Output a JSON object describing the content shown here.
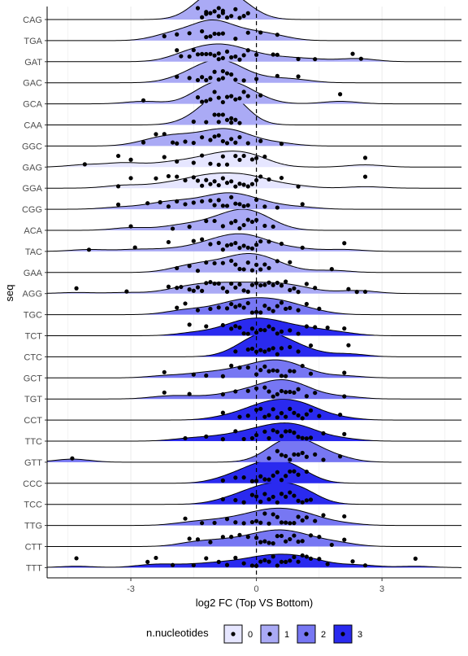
{
  "chart_data": {
    "type": "ridgeline",
    "xlabel": "log2 FC (Top VS Bottom)",
    "ylabel": "seq",
    "xlim": [
      -5.0,
      4.9
    ],
    "x_ticks": [
      -3,
      0,
      3
    ],
    "x_tick_labels": [
      "-3",
      "0",
      "3"
    ],
    "reference_line_x": 0,
    "grid": true,
    "legend": {
      "title": "n.nucleotides",
      "position": "bottom",
      "entries": [
        {
          "label": "0",
          "color": "#e6e6ff"
        },
        {
          "label": "1",
          "color": "#aaaaf5"
        },
        {
          "label": "2",
          "color": "#7777f3"
        },
        {
          "label": "3",
          "color": "#2a2aef"
        }
      ]
    },
    "categories": [
      "CAG",
      "TGA",
      "GAT",
      "GAC",
      "GCA",
      "CAA",
      "GGC",
      "GAG",
      "GGA",
      "CGG",
      "ACA",
      "TAC",
      "GAA",
      "AGG",
      "TGC",
      "TCT",
      "CTC",
      "GCT",
      "TGT",
      "CCT",
      "TTC",
      "GTT",
      "CCC",
      "TCC",
      "TTG",
      "CTT",
      "TTT"
    ],
    "series": [
      {
        "seq": "CAG",
        "n": 1,
        "points": [
          -1.4,
          -1.3,
          -1.2,
          -1.2,
          -1.1,
          -1.0,
          -0.9,
          -0.8,
          -0.8,
          -0.7,
          -0.6,
          -0.5,
          -0.4,
          -0.3,
          -0.2,
          -0.9
        ]
      },
      {
        "seq": "TGA",
        "n": 1,
        "points": [
          -2.2,
          -1.9,
          -1.6,
          -1.3,
          -1.2,
          -1.1,
          -1.0,
          -0.9,
          -0.8,
          -0.5,
          -0.2,
          0.1,
          0.5
        ]
      },
      {
        "seq": "GAT",
        "n": 1,
        "points": [
          -1.9,
          -1.8,
          -1.6,
          -1.5,
          -1.4,
          -1.3,
          -1.2,
          -1.1,
          -1.0,
          -0.9,
          -0.9,
          -0.8,
          -0.7,
          -0.6,
          -0.5,
          -0.4,
          -0.3,
          -0.2,
          0.0,
          0.4,
          0.5,
          1.0,
          1.4,
          2.3,
          2.5
        ]
      },
      {
        "seq": "GAC",
        "n": 1,
        "points": [
          -1.9,
          -1.6,
          -1.4,
          -1.3,
          -1.2,
          -1.1,
          -1.0,
          -0.9,
          -0.8,
          -0.8,
          -0.7,
          -0.6,
          -0.5,
          -0.3,
          0.0,
          0.5,
          1.0
        ]
      },
      {
        "seq": "GCA",
        "n": 1,
        "points": [
          -2.7,
          -1.4,
          -1.3,
          -1.2,
          -1.1,
          -1.0,
          -0.9,
          -0.8,
          -0.7,
          -0.6,
          -0.5,
          -0.4,
          -0.3,
          -0.2,
          0.1,
          2.0
        ]
      },
      {
        "seq": "CAA",
        "n": 1,
        "points": [
          -1.5,
          -1.2,
          -1.0,
          -0.9,
          -0.8,
          -0.7,
          -0.6,
          -0.5,
          -0.4,
          -0.9,
          -0.6
        ]
      },
      {
        "seq": "GGC",
        "n": 1,
        "points": [
          -2.7,
          -2.4,
          -2.2,
          -2.0,
          -1.9,
          -1.7,
          -1.5,
          -1.3,
          -1.1,
          -1.0,
          -0.9,
          -0.8,
          -0.7,
          -0.6,
          -0.5,
          -0.4,
          -0.2,
          0.1,
          0.6
        ]
      },
      {
        "seq": "GAG",
        "n": 0,
        "points": [
          -4.1,
          -3.3,
          -3.0,
          -2.2,
          -1.9,
          -1.5,
          -1.3,
          -1.1,
          -0.9,
          -0.8,
          -0.7,
          -0.5,
          -0.4,
          -0.3,
          -0.1,
          0.0,
          0.2,
          2.6
        ]
      },
      {
        "seq": "GGA",
        "n": 0,
        "points": [
          -3.3,
          -3.0,
          -2.4,
          -2.1,
          -1.9,
          -1.7,
          -1.5,
          -1.4,
          -1.3,
          -1.2,
          -1.1,
          -1.0,
          -0.9,
          -0.8,
          -0.7,
          -0.6,
          -0.5,
          -0.4,
          -0.3,
          -0.2,
          -0.1,
          0.0,
          0.1,
          0.3,
          0.6,
          1.0,
          2.6
        ]
      },
      {
        "seq": "CGG",
        "n": 1,
        "points": [
          -3.3,
          -2.6,
          -2.3,
          -2.1,
          -1.9,
          -1.7,
          -1.5,
          -1.3,
          -1.1,
          -1.0,
          -0.9,
          -0.8,
          -0.7,
          -0.6,
          -0.5,
          -0.4,
          -0.3,
          -0.2,
          0.0,
          0.2,
          0.5,
          1.1
        ]
      },
      {
        "seq": "ACA",
        "n": 1,
        "points": [
          -3.0,
          -2.0,
          -1.6,
          -1.2,
          -1.0,
          -0.8,
          -0.6,
          -0.5,
          -0.4,
          -0.3,
          -0.2,
          -0.1,
          0.0,
          0.2,
          0.4
        ]
      },
      {
        "seq": "TAC",
        "n": 1,
        "points": [
          -4.0,
          -2.9,
          -2.1,
          -1.5,
          -1.3,
          -1.1,
          -0.9,
          -0.8,
          -0.7,
          -0.6,
          -0.5,
          -0.4,
          -0.3,
          -0.2,
          -0.1,
          0.0,
          0.1,
          0.3,
          0.6,
          1.1,
          2.1
        ]
      },
      {
        "seq": "GAA",
        "n": 1,
        "points": [
          -1.9,
          -1.6,
          -1.4,
          -1.2,
          -1.0,
          -0.8,
          -0.6,
          -0.5,
          -0.4,
          -0.3,
          -0.2,
          -0.1,
          0.0,
          0.1,
          0.2,
          0.3,
          0.5,
          0.8,
          1.8
        ]
      },
      {
        "seq": "AGG",
        "n": 1,
        "points": [
          -4.3,
          -3.1,
          -2.1,
          -1.9,
          -1.8,
          -1.6,
          -1.5,
          -1.4,
          -1.3,
          -1.2,
          -1.1,
          -1.0,
          -0.9,
          -0.8,
          -0.7,
          -0.6,
          -0.5,
          -0.4,
          -0.3,
          -0.2,
          -0.1,
          0.0,
          0.1,
          0.2,
          0.3,
          0.4,
          0.5,
          0.6,
          0.7,
          0.8,
          0.9,
          1.0,
          1.2,
          1.4,
          2.2,
          2.4,
          2.6
        ]
      },
      {
        "seq": "TGC",
        "n": 2,
        "points": [
          -1.9,
          -1.7,
          -1.4,
          -1.1,
          -0.9,
          -0.7,
          -0.6,
          -0.5,
          -0.4,
          -0.3,
          -0.2,
          -0.1,
          0.0,
          0.1,
          0.2,
          0.3,
          0.4,
          0.5,
          0.6,
          0.7,
          0.8,
          1.0,
          1.2,
          1.5
        ]
      },
      {
        "seq": "TCT",
        "n": 3,
        "points": [
          -1.6,
          -1.2,
          -0.8,
          -0.6,
          -0.5,
          -0.4,
          -0.3,
          -0.2,
          -0.1,
          0.0,
          0.1,
          0.2,
          0.3,
          0.4,
          0.5,
          0.6,
          0.8,
          1.0,
          1.2,
          1.4,
          1.7,
          2.1
        ]
      },
      {
        "seq": "CTC",
        "n": 3,
        "points": [
          -0.5,
          -0.2,
          -0.1,
          0.0,
          0.1,
          0.2,
          0.3,
          0.4,
          0.5,
          0.6,
          0.8,
          1.0,
          1.3,
          2.2
        ]
      },
      {
        "seq": "GCT",
        "n": 2,
        "points": [
          -2.2,
          -1.5,
          -1.2,
          -0.8,
          -0.6,
          -0.4,
          -0.2,
          0.0,
          0.1,
          0.2,
          0.3,
          0.4,
          0.5,
          0.6,
          0.7,
          0.8,
          0.9,
          1.1,
          1.3,
          2.1
        ]
      },
      {
        "seq": "TGT",
        "n": 2,
        "points": [
          -2.2,
          -1.6,
          -0.8,
          -0.5,
          -0.2,
          0.0,
          0.2,
          0.3,
          0.4,
          0.5,
          0.6,
          0.7,
          0.8,
          0.9,
          1.0,
          1.2,
          1.4,
          2.1
        ]
      },
      {
        "seq": "CCT",
        "n": 3,
        "points": [
          -0.8,
          -0.4,
          -0.2,
          0.0,
          0.1,
          0.2,
          0.3,
          0.4,
          0.5,
          0.6,
          0.7,
          0.8,
          0.9,
          1.0,
          1.1,
          1.2,
          1.3,
          1.5,
          2.0
        ]
      },
      {
        "seq": "TTC",
        "n": 3,
        "points": [
          -1.7,
          -1.2,
          -0.8,
          -0.5,
          -0.3,
          -0.1,
          0.0,
          0.2,
          0.3,
          0.4,
          0.5,
          0.6,
          0.7,
          0.8,
          0.9,
          1.0,
          1.1,
          1.2,
          1.3,
          1.6,
          2.1
        ]
      },
      {
        "seq": "GTT",
        "n": 2,
        "points": [
          -4.4,
          0.3,
          0.5,
          0.6,
          0.7,
          0.8,
          0.9,
          1.0,
          1.1,
          1.2,
          1.4,
          1.6,
          2.0
        ]
      },
      {
        "seq": "CCC",
        "n": 3,
        "points": [
          -0.8,
          -0.5,
          -0.3,
          -0.1,
          0.0,
          0.1,
          0.2,
          0.3,
          0.4,
          0.5,
          0.6,
          0.7,
          0.8,
          0.9,
          1.0,
          1.2
        ]
      },
      {
        "seq": "TCC",
        "n": 3,
        "points": [
          -0.8,
          -0.5,
          -0.3,
          -0.1,
          0.0,
          0.1,
          0.2,
          0.3,
          0.4,
          0.5,
          0.6,
          0.7,
          0.8,
          0.9,
          1.0,
          1.1,
          1.2,
          1.3
        ]
      },
      {
        "seq": "TTG",
        "n": 2,
        "points": [
          -1.7,
          -1.3,
          -1.0,
          -0.7,
          -0.5,
          -0.3,
          -0.1,
          0.0,
          0.1,
          0.2,
          0.3,
          0.4,
          0.5,
          0.6,
          0.7,
          0.8,
          0.9,
          1.0,
          1.1,
          1.2,
          1.4,
          1.6,
          2.1
        ]
      },
      {
        "seq": "CTT",
        "n": 2,
        "points": [
          -1.6,
          -1.4,
          -1.1,
          -0.8,
          -0.6,
          -0.4,
          -0.2,
          0.0,
          0.1,
          0.2,
          0.3,
          0.4,
          0.5,
          0.6,
          0.7,
          0.8,
          0.9,
          1.0,
          1.1,
          1.3,
          1.5,
          1.8,
          2.1
        ]
      },
      {
        "seq": "TTT",
        "n": 3,
        "points": [
          -4.3,
          -2.6,
          -2.4,
          -2.0,
          -1.5,
          -1.2,
          -0.9,
          -0.7,
          -0.5,
          -0.3,
          -0.1,
          0.0,
          0.1,
          0.2,
          0.3,
          0.4,
          0.5,
          0.6,
          0.7,
          0.8,
          0.9,
          1.0,
          1.1,
          1.2,
          1.3,
          1.5,
          1.7,
          2.3,
          2.6,
          3.8
        ]
      }
    ]
  }
}
